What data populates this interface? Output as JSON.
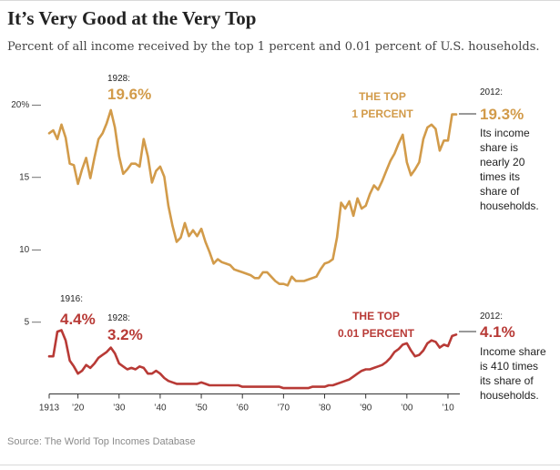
{
  "title": "It’s Very Good at the Very Top",
  "subtitle": "Percent of all income received by the top 1 percent and 0.01 percent of U.S. households.",
  "source": "Source: The World Top Incomes Database",
  "colors": {
    "top1": "#d29b4a",
    "top001": "#b83a36",
    "axis": "#333333"
  },
  "chart_data": {
    "type": "line",
    "ylim": [
      0,
      21
    ],
    "xlim": [
      1913,
      2012
    ],
    "y_ticks": [
      {
        "value": 20,
        "label": "20% —"
      },
      {
        "value": 15,
        "label": "15 —"
      },
      {
        "value": 10,
        "label": "10 —"
      },
      {
        "value": 5,
        "label": "5 —"
      }
    ],
    "x_ticks": [
      {
        "value": 1913,
        "label": "1913"
      },
      {
        "value": 1920,
        "label": "’20"
      },
      {
        "value": 1930,
        "label": "’30"
      },
      {
        "value": 1940,
        "label": "’40"
      },
      {
        "value": 1950,
        "label": "’50"
      },
      {
        "value": 1960,
        "label": "’60"
      },
      {
        "value": 1970,
        "label": "’70"
      },
      {
        "value": 1980,
        "label": "’80"
      },
      {
        "value": 1990,
        "label": "’90"
      },
      {
        "value": 2000,
        "label": "’00"
      },
      {
        "value": 2010,
        "label": "’10"
      }
    ],
    "series": [
      {
        "name": "THE TOP 1 PERCENT",
        "label_lines": [
          "THE TOP",
          "1 PERCENT"
        ],
        "color": "#d29b4a",
        "x": [
          1913,
          1914,
          1915,
          1916,
          1917,
          1918,
          1919,
          1920,
          1921,
          1922,
          1923,
          1924,
          1925,
          1926,
          1927,
          1928,
          1929,
          1930,
          1931,
          1932,
          1933,
          1934,
          1935,
          1936,
          1937,
          1938,
          1939,
          1940,
          1941,
          1942,
          1943,
          1944,
          1945,
          1946,
          1947,
          1948,
          1949,
          1950,
          1951,
          1952,
          1953,
          1954,
          1955,
          1956,
          1957,
          1958,
          1959,
          1960,
          1961,
          1962,
          1963,
          1964,
          1965,
          1966,
          1967,
          1968,
          1969,
          1970,
          1971,
          1972,
          1973,
          1974,
          1975,
          1976,
          1977,
          1978,
          1979,
          1980,
          1981,
          1982,
          1983,
          1984,
          1985,
          1986,
          1987,
          1988,
          1989,
          1990,
          1991,
          1992,
          1993,
          1994,
          1995,
          1996,
          1997,
          1998,
          1999,
          2000,
          2001,
          2002,
          2003,
          2004,
          2005,
          2006,
          2007,
          2008,
          2009,
          2010,
          2011,
          2012
        ],
        "values": [
          18.0,
          18.2,
          17.6,
          18.6,
          17.7,
          15.9,
          15.8,
          14.5,
          15.5,
          16.3,
          14.9,
          16.3,
          17.6,
          18.0,
          18.7,
          19.6,
          18.4,
          16.4,
          15.2,
          15.5,
          15.9,
          15.9,
          15.7,
          17.6,
          16.4,
          14.6,
          15.4,
          15.7,
          15.0,
          13.0,
          11.6,
          10.5,
          10.8,
          11.8,
          10.9,
          11.3,
          10.9,
          11.4,
          10.5,
          9.8,
          9.0,
          9.3,
          9.1,
          9.0,
          8.9,
          8.6,
          8.5,
          8.4,
          8.3,
          8.2,
          8.0,
          8.0,
          8.4,
          8.4,
          8.1,
          7.8,
          7.6,
          7.6,
          7.5,
          8.1,
          7.8,
          7.8,
          7.8,
          7.9,
          8.0,
          8.1,
          8.6,
          9.0,
          9.1,
          9.3,
          10.8,
          13.2,
          12.8,
          13.3,
          12.3,
          13.5,
          12.8,
          13.0,
          13.8,
          14.4,
          14.1,
          14.7,
          15.4,
          16.1,
          16.6,
          17.3,
          17.9,
          16.0,
          15.1,
          15.5,
          16.0,
          17.6,
          18.4,
          18.6,
          18.3,
          16.8,
          17.5,
          17.5,
          19.3,
          19.3
        ]
      },
      {
        "name": "THE TOP 0.01 PERCENT",
        "label_lines": [
          "THE TOP",
          "0.01 PERCENT"
        ],
        "color": "#b83a36",
        "x": [
          1913,
          1914,
          1915,
          1916,
          1917,
          1918,
          1919,
          1920,
          1921,
          1922,
          1923,
          1924,
          1925,
          1926,
          1927,
          1928,
          1929,
          1930,
          1931,
          1932,
          1933,
          1934,
          1935,
          1936,
          1937,
          1938,
          1939,
          1940,
          1941,
          1942,
          1943,
          1944,
          1945,
          1946,
          1947,
          1948,
          1949,
          1950,
          1951,
          1952,
          1953,
          1954,
          1955,
          1956,
          1957,
          1958,
          1959,
          1960,
          1961,
          1962,
          1963,
          1964,
          1965,
          1966,
          1967,
          1968,
          1969,
          1970,
          1971,
          1972,
          1973,
          1974,
          1975,
          1976,
          1977,
          1978,
          1979,
          1980,
          1981,
          1982,
          1983,
          1984,
          1985,
          1986,
          1987,
          1988,
          1989,
          1990,
          1991,
          1992,
          1993,
          1994,
          1995,
          1996,
          1997,
          1998,
          1999,
          2000,
          2001,
          2002,
          2003,
          2004,
          2005,
          2006,
          2007,
          2008,
          2009,
          2010,
          2011,
          2012
        ],
        "values": [
          2.6,
          2.6,
          4.3,
          4.4,
          3.7,
          2.3,
          1.9,
          1.4,
          1.6,
          2.0,
          1.8,
          2.1,
          2.5,
          2.7,
          2.9,
          3.2,
          2.8,
          2.1,
          1.9,
          1.7,
          1.8,
          1.7,
          1.9,
          1.8,
          1.4,
          1.4,
          1.6,
          1.4,
          1.1,
          0.9,
          0.8,
          0.7,
          0.7,
          0.7,
          0.7,
          0.7,
          0.7,
          0.8,
          0.7,
          0.6,
          0.6,
          0.6,
          0.6,
          0.6,
          0.6,
          0.6,
          0.6,
          0.5,
          0.5,
          0.5,
          0.5,
          0.5,
          0.5,
          0.5,
          0.5,
          0.5,
          0.5,
          0.4,
          0.4,
          0.4,
          0.4,
          0.4,
          0.4,
          0.4,
          0.5,
          0.5,
          0.5,
          0.5,
          0.6,
          0.6,
          0.7,
          0.8,
          0.9,
          1.0,
          1.2,
          1.4,
          1.6,
          1.7,
          1.7,
          1.8,
          1.9,
          2.0,
          2.2,
          2.5,
          2.9,
          3.1,
          3.4,
          3.5,
          3.0,
          2.6,
          2.7,
          3.0,
          3.5,
          3.7,
          3.6,
          3.2,
          3.4,
          3.3,
          4.0,
          4.1
        ]
      }
    ],
    "annotations": {
      "top1": {
        "peak_year": "1928:",
        "peak_value": "19.6%",
        "end_year": "2012:",
        "end_value": "19.3%",
        "note_lines": [
          "Its income",
          "share is",
          "nearly 20",
          "times its",
          "share of",
          "households."
        ]
      },
      "top001": {
        "peak1916_year": "1916:",
        "peak1916_value": "4.4%",
        "peak1928_year": "1928:",
        "peak1928_value": "3.2%",
        "end_year": "2012:",
        "end_value": "4.1%",
        "note_lines": [
          "Income share",
          "is 410 times",
          "its share of",
          "households."
        ]
      }
    }
  }
}
